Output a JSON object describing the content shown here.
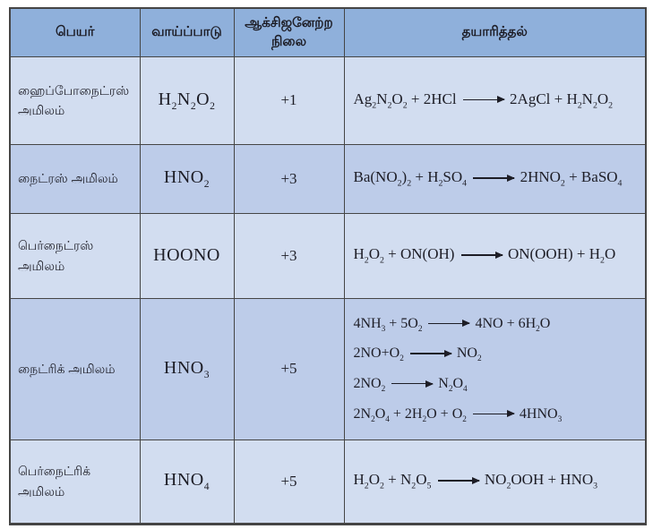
{
  "colors": {
    "header_bg": "#8fb0db",
    "row_light_bg": "#d2ddf0",
    "row_dark_bg": "#bdcce9",
    "border": "#454545",
    "text_dark": "#1d1d26"
  },
  "table": {
    "headers": {
      "name": "பெயர்",
      "formula": "வாய்ப்பாடு",
      "oxidation_state": "ஆக்சிஜனேற்ற நிலை",
      "preparation": "தயாரித்தல்"
    },
    "rows": [
      {
        "name": "ஹைப்போநைட்ரஸ் அமிலம்",
        "formula": "H_2N_2O_2",
        "oxidation_state": "+1",
        "preparation": [
          "Ag_2N_2O_2 + 2HCl ⟶ 2AgCl + H_2N_2O_2"
        ]
      },
      {
        "name": "நைட்ரஸ் அமிலம்",
        "formula": "HNO_2",
        "oxidation_state": "+3",
        "preparation": [
          "Ba(NO_2)_2 + H_2SO_4 ⟶ 2HNO_2 + BaSO_4"
        ]
      },
      {
        "name": "பெர்நைட்ரஸ் அமிலம்",
        "formula": "HOONO",
        "oxidation_state": "+3",
        "preparation": [
          "H_2O_2 + ON(OH) ⟶ ON(OOH) + H_2O"
        ]
      },
      {
        "name": "நைட்ரிக் அமிலம்",
        "formula": "HNO_3",
        "oxidation_state": "+5",
        "preparation": [
          "4NH_3 + 5O_2 ⟶ 4NO + 6H_2O",
          "2NO+O_2 ⟶ NO_2",
          "2NO_2 ⟶ N_2O_4",
          "2N_2O_4 + 2H_2O + O_2 ⟶ 4HNO_3"
        ]
      },
      {
        "name": "பெர்நைட்ரிக் அமிலம்",
        "formula": "HNO_4",
        "oxidation_state": "+5",
        "preparation": [
          "H_2O_2 + N_2O_5 ⟶ NO_2OOH + HNO_3"
        ]
      }
    ]
  }
}
